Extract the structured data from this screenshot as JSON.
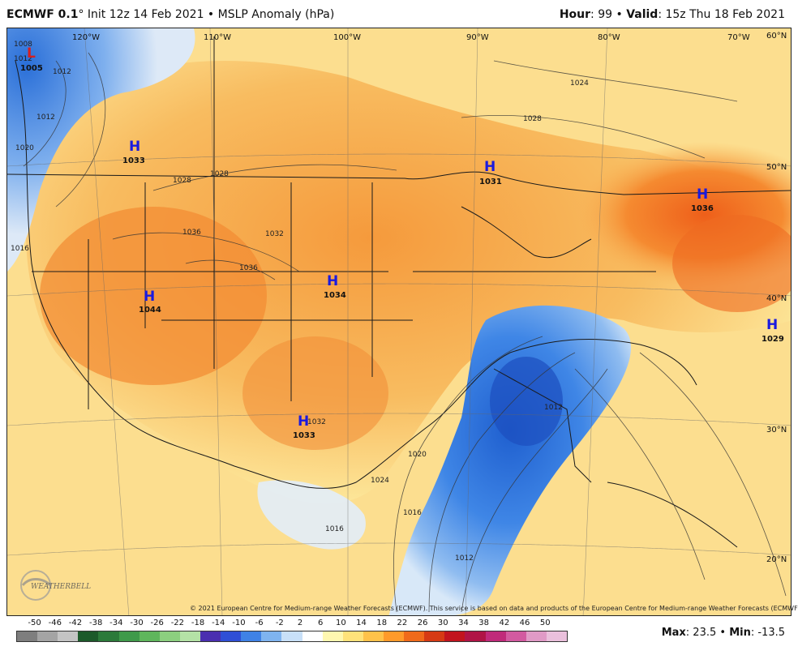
{
  "header": {
    "model": "ECMWF 0.1",
    "degree": "°",
    "init": " Init 12z 14 Feb 2021 • MSLP Anomaly (hPa)",
    "hour_label": "Hour",
    "hour_value": ": 99 • ",
    "valid_label": "Valid",
    "valid_value": ": 15z Thu 18 Feb 2021"
  },
  "map": {
    "lon_labels": [
      "120°W",
      "110°W",
      "100°W",
      "90°W",
      "80°W",
      "70°W",
      "60°N"
    ],
    "lat_labels": [
      "50°N",
      "40°N",
      "30°N",
      "20°N"
    ],
    "pressure_centers": [
      {
        "type": "L",
        "value": "1005",
        "color": "#d62020"
      },
      {
        "type": "H",
        "value": "1033",
        "color": "#1a1adf"
      },
      {
        "type": "H",
        "value": "1031",
        "color": "#1a1adf"
      },
      {
        "type": "H",
        "value": "1036",
        "color": "#1a1adf"
      },
      {
        "type": "H",
        "value": "1034",
        "color": "#1a1adf"
      },
      {
        "type": "H",
        "value": "1044",
        "color": "#1a1adf"
      },
      {
        "type": "H",
        "value": "1029",
        "color": "#1a1adf"
      },
      {
        "type": "H",
        "value": "1033",
        "color": "#1a1adf"
      }
    ],
    "isobar_labels": [
      "1008",
      "1012",
      "1016",
      "1020",
      "1012",
      "1024",
      "1028",
      "1028",
      "1028",
      "1036",
      "1036",
      "1032",
      "1032",
      "1024",
      "1020",
      "1016",
      "1016",
      "1012",
      "1012",
      "1012"
    ],
    "credit": "© 2021 European Centre for Medium-range Weather Forecasts (ECMWF). This service is based on data and products of the European Centre for Medium-range Weather Forecasts (ECMWF).",
    "logo_text": "WEATHERBELL"
  },
  "colorbar": {
    "labels": [
      "-50",
      "-46",
      "-42",
      "-38",
      "-34",
      "-30",
      "-26",
      "-22",
      "-18",
      "-14",
      "-10",
      "-6",
      "-2",
      "2",
      "6",
      "10",
      "14",
      "18",
      "22",
      "26",
      "30",
      "34",
      "38",
      "42",
      "46",
      "50"
    ],
    "colors": [
      "#7e7e7e",
      "#a4a4a4",
      "#c4c4c4",
      "#1c5a2a",
      "#2c7a3a",
      "#3f9a4a",
      "#5fb65c",
      "#8ccf7f",
      "#b4e2a6",
      "#4a2fb0",
      "#2f4fd6",
      "#3f82e6",
      "#7fb4f0",
      "#c8e0f8",
      "#ffffff",
      "#fff7b0",
      "#ffe27a",
      "#ffc24a",
      "#ff9a2a",
      "#f06a1a",
      "#d63a14",
      "#c2141e",
      "#b01446",
      "#c02a7a",
      "#d25aa0",
      "#e09ac6",
      "#eac0dc"
    ],
    "max_label": "Max",
    "max_value": ": 23.5 • ",
    "min_label": "Min",
    "min_value": ": -13.5"
  }
}
